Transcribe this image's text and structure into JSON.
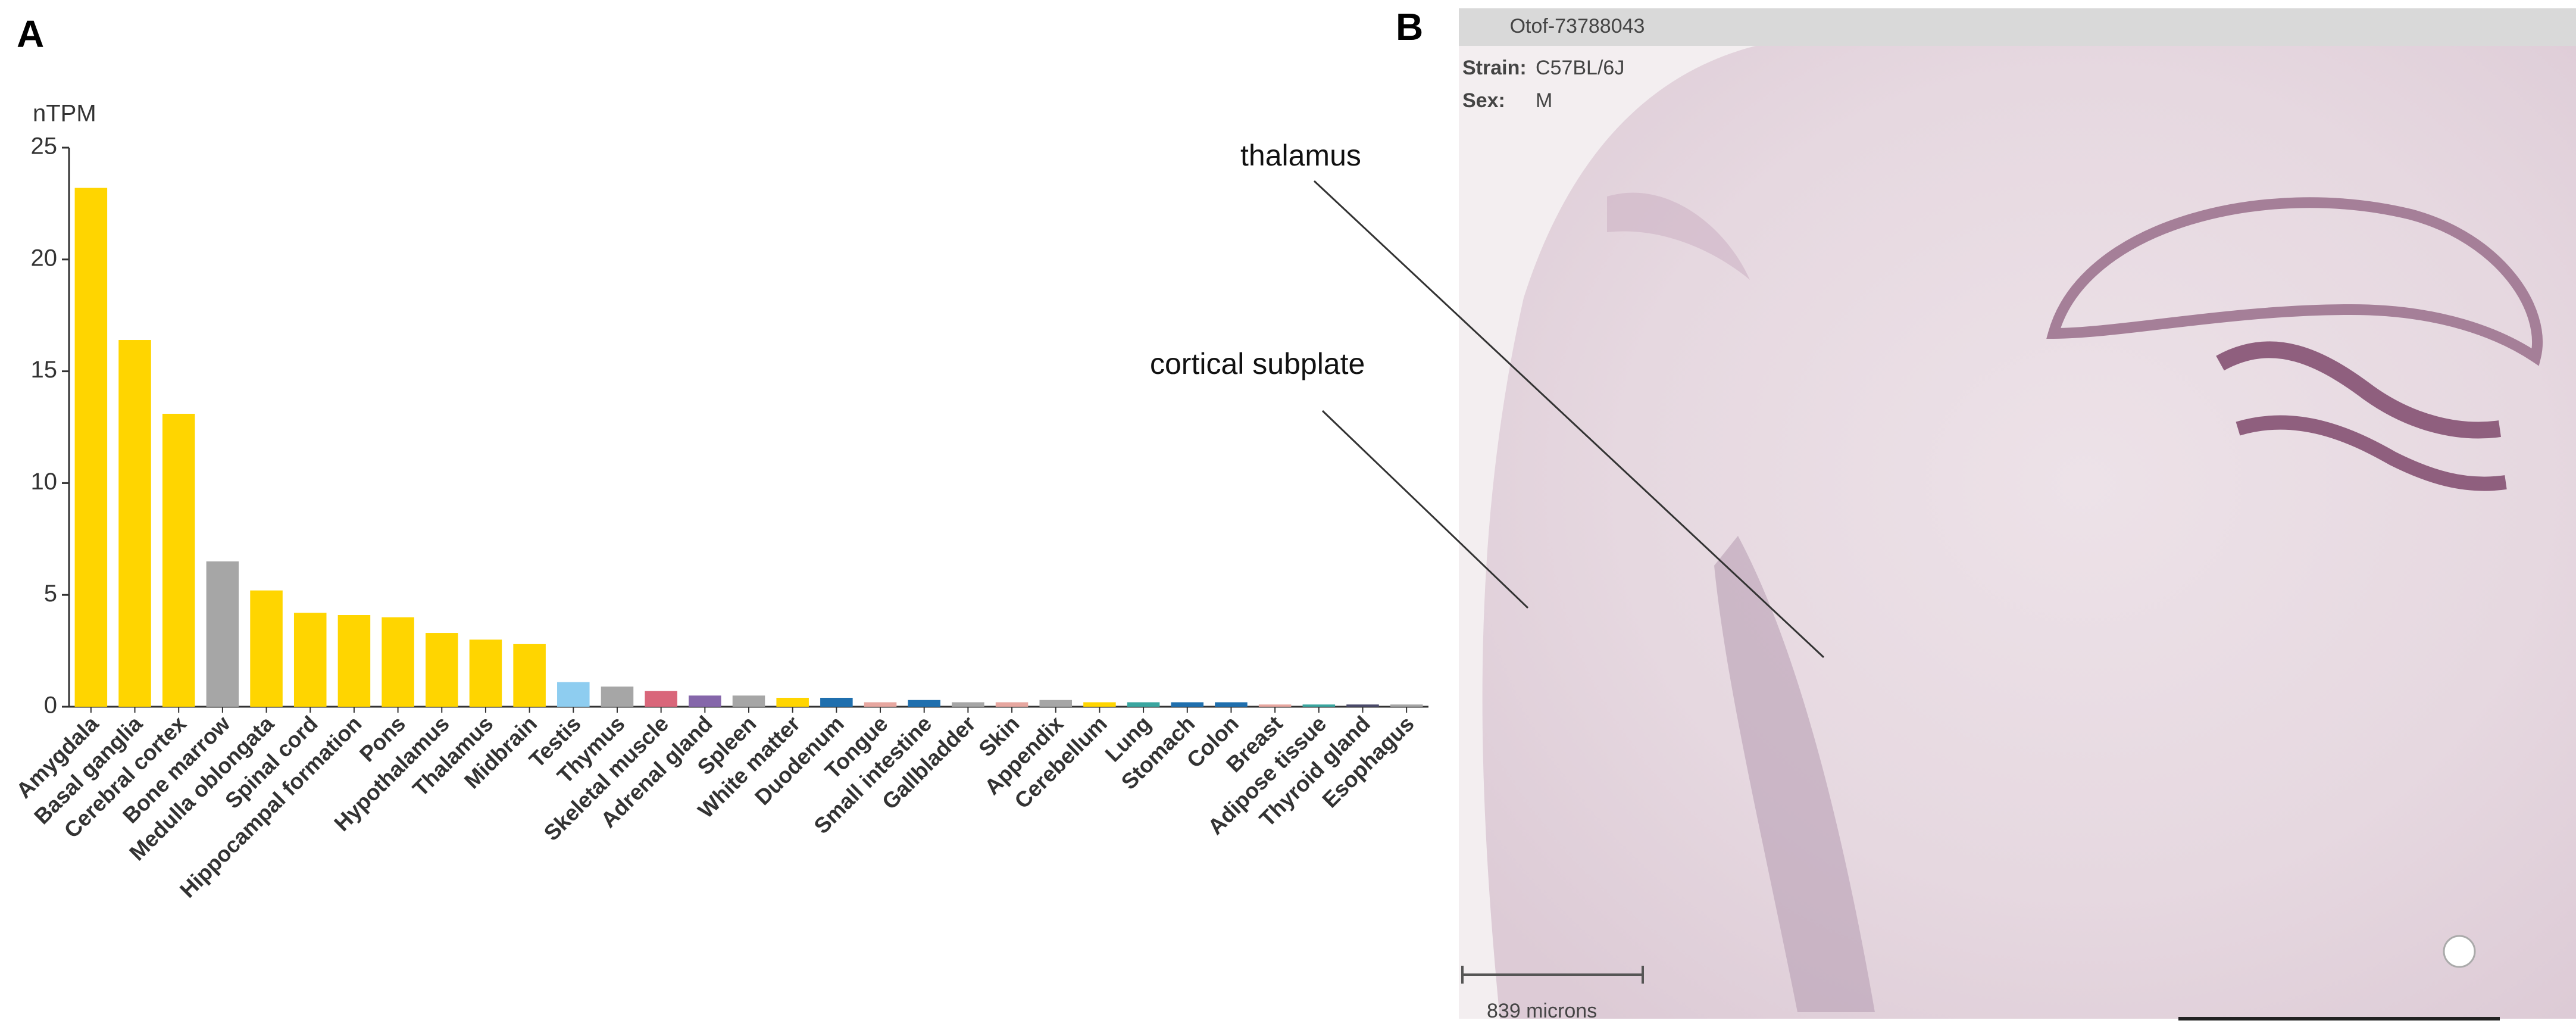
{
  "panels": {
    "a": "A",
    "b": "B"
  },
  "chart_data": {
    "type": "bar",
    "y_label": "nTPM",
    "categories": [
      "Amygdala",
      "Basal ganglia",
      "Cerebral cortex",
      "Bone marrow",
      "Medulla oblongata",
      "Spinal cord",
      "Hippocampal formation",
      "Pons",
      "Hypothalamus",
      "Thalamus",
      "Midbrain",
      "Testis",
      "Thymus",
      "Skeletal muscle",
      "Adrenal gland",
      "Spleen",
      "White matter",
      "Duodenum",
      "Tongue",
      "Small intestine",
      "Gallbladder",
      "Skin",
      "Appendix",
      "Cerebellum",
      "Lung",
      "Stomach",
      "Colon",
      "Breast",
      "Adipose tissue",
      "Thyroid gland",
      "Esophagus"
    ],
    "values": [
      23.2,
      16.4,
      13.1,
      6.5,
      5.2,
      4.2,
      4.1,
      4.0,
      3.3,
      3.0,
      2.8,
      1.1,
      0.9,
      0.7,
      0.5,
      0.5,
      0.4,
      0.4,
      0.2,
      0.3,
      0.2,
      0.2,
      0.3,
      0.2,
      0.2,
      0.2,
      0.2,
      0.1,
      0.1,
      0.1,
      0.1
    ],
    "colors": [
      "#ffd500",
      "#ffd500",
      "#ffd500",
      "#a6a6a6",
      "#ffd500",
      "#ffd500",
      "#ffd500",
      "#ffd500",
      "#ffd500",
      "#ffd500",
      "#ffd500",
      "#8ecdf0",
      "#a6a6a6",
      "#d9667a",
      "#8566aa",
      "#a6a6a6",
      "#ffd500",
      "#1f6fae",
      "#e7a7a0",
      "#1f6fae",
      "#a6a6a6",
      "#e7a7a0",
      "#a6a6a6",
      "#ffd500",
      "#3aa6a0",
      "#1f6fae",
      "#1f6fae",
      "#e7a7a0",
      "#3aa6a0",
      "#4a4a6a",
      "#a6a6a6"
    ],
    "ylim": [
      0,
      25
    ],
    "yticks": [
      0,
      5,
      10,
      15,
      20,
      25
    ],
    "grid": false
  },
  "image": {
    "title": "Otof-73788043",
    "strain_label": "Strain:",
    "strain": "C57BL/6J",
    "sex_label": "Sex:",
    "sex": "M",
    "annotations": [
      "thalamus",
      "cortical subplate"
    ],
    "scale_bar": "839 microns"
  }
}
